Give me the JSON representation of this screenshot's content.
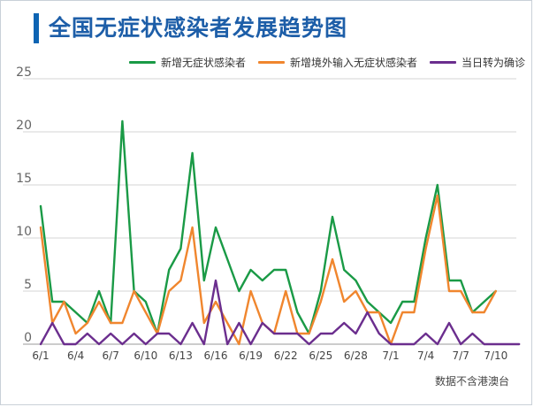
{
  "chart_data": {
    "type": "line",
    "title": "全国无症状感染者发展趋势图",
    "note": "数据不含港澳台",
    "ylim": [
      0,
      25
    ],
    "yticks": [
      0,
      5,
      10,
      15,
      20,
      25
    ],
    "grid": true,
    "legend_position": "top-right",
    "x": [
      "6/1",
      "6/2",
      "6/3",
      "6/4",
      "6/5",
      "6/6",
      "6/7",
      "6/8",
      "6/9",
      "6/10",
      "6/11",
      "6/12",
      "6/13",
      "6/14",
      "6/15",
      "6/16",
      "6/17",
      "6/18",
      "6/19",
      "6/20",
      "6/21",
      "6/22",
      "6/23",
      "6/24",
      "6/25",
      "6/26",
      "6/27",
      "6/28",
      "6/29",
      "6/30",
      "7/1",
      "7/2",
      "7/3",
      "7/4",
      "7/5",
      "7/6",
      "7/7",
      "7/8",
      "7/9",
      "7/10",
      "7/11",
      "7/12"
    ],
    "xtick_labels": [
      "6/1",
      "6/4",
      "6/7",
      "6/10",
      "6/13",
      "6/16",
      "6/19",
      "6/22",
      "6/25",
      "6/28",
      "7/1",
      "7/4",
      "7/7",
      "7/10"
    ],
    "series": [
      {
        "name": "新增无症状感染者",
        "color": "#1a9a46",
        "values": [
          13,
          4,
          4,
          3,
          2,
          5,
          2,
          21,
          5,
          4,
          1,
          7,
          9,
          18,
          6,
          11,
          8,
          5,
          7,
          6,
          7,
          7,
          3,
          1,
          5,
          12,
          7,
          6,
          4,
          3,
          2,
          4,
          4,
          10,
          15,
          6,
          6,
          3,
          4,
          5,
          null,
          null
        ]
      },
      {
        "name": "新增境外输入无症状感染者",
        "color": "#f0862e",
        "values": [
          11,
          2,
          4,
          1,
          2,
          4,
          2,
          2,
          5,
          3,
          1,
          5,
          6,
          11,
          2,
          4,
          2,
          0,
          5,
          2,
          1,
          5,
          1,
          1,
          4,
          8,
          4,
          5,
          3,
          3,
          0,
          3,
          3,
          9,
          14,
          5,
          5,
          3,
          3,
          5,
          null,
          null
        ]
      },
      {
        "name": "当日转为确诊",
        "color": "#6b2e8e",
        "values": [
          0,
          2,
          0,
          0,
          1,
          0,
          1,
          0,
          1,
          0,
          1,
          1,
          0,
          2,
          0,
          6,
          0,
          2,
          0,
          2,
          1,
          1,
          1,
          0,
          1,
          1,
          2,
          1,
          3,
          1,
          0,
          0,
          0,
          1,
          0,
          2,
          0,
          1,
          0,
          0,
          0,
          0
        ]
      }
    ]
  }
}
